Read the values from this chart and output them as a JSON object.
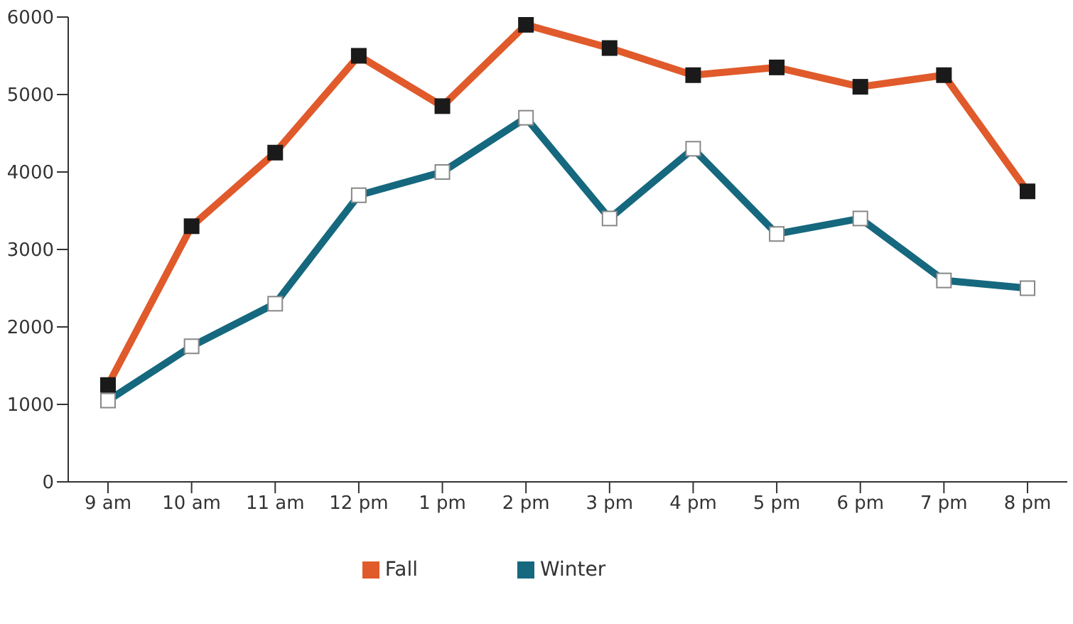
{
  "chart_data": {
    "type": "line",
    "categories": [
      "9 am",
      "10 am",
      "11 am",
      "12 pm",
      "1 pm",
      "2 pm",
      "3 pm",
      "4 pm",
      "5 pm",
      "6 pm",
      "7 pm",
      "8 pm"
    ],
    "series": [
      {
        "name": "Fall",
        "color": "#e05a2b",
        "values": [
          1250,
          3300,
          4250,
          5500,
          4850,
          5900,
          5600,
          5250,
          5350,
          5100,
          5250,
          3750
        ]
      },
      {
        "name": "Winter",
        "color": "#15687e",
        "values": [
          1050,
          1750,
          2300,
          3700,
          4000,
          4700,
          3400,
          4300,
          3200,
          3400,
          2600,
          2500
        ]
      }
    ],
    "ylim": [
      0,
      6000
    ],
    "yticks": [
      0,
      1000,
      2000,
      3000,
      4000,
      5000,
      6000
    ],
    "grid": false,
    "legend": "bottom",
    "marker": "square",
    "line_style": "solid"
  }
}
